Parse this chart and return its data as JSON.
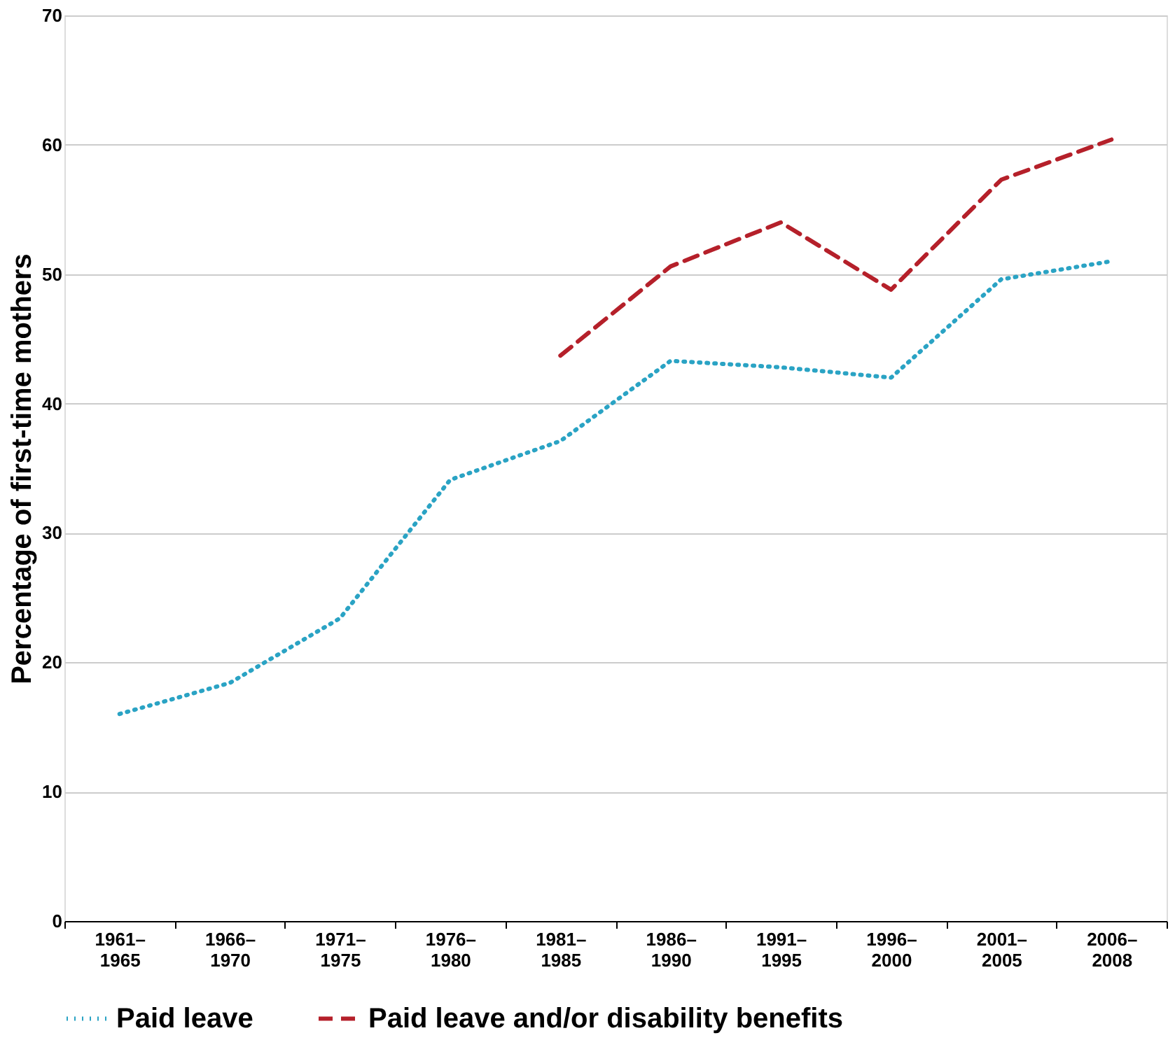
{
  "chart_data": {
    "type": "line",
    "ylabel": "Percentage of first-time mothers",
    "categories": [
      "1961–\n1965",
      "1966–\n1970",
      "1971–\n1975",
      "1976–\n1980",
      "1981–\n1985",
      "1986–\n1990",
      "1991–\n1995",
      "1996–\n2000",
      "2001–\n2005",
      "2006–\n2008"
    ],
    "series": [
      {
        "name": "Paid leave",
        "color": "#2aa3c4",
        "line_style": "dotted",
        "values": [
          16.0,
          18.4,
          23.4,
          34.1,
          37.1,
          43.3,
          42.8,
          42.0,
          49.6,
          51.0
        ]
      },
      {
        "name": "Paid leave and/or disability benefits",
        "color": "#b5202a",
        "line_style": "dashed",
        "values": [
          null,
          null,
          null,
          null,
          43.7,
          50.6,
          54.0,
          48.8,
          57.3,
          60.4
        ]
      }
    ],
    "ylim": [
      0,
      70
    ],
    "yticks": [
      0,
      10,
      20,
      30,
      40,
      50,
      60,
      70
    ],
    "grid": "y",
    "legend": "bottom",
    "marker": "none"
  }
}
